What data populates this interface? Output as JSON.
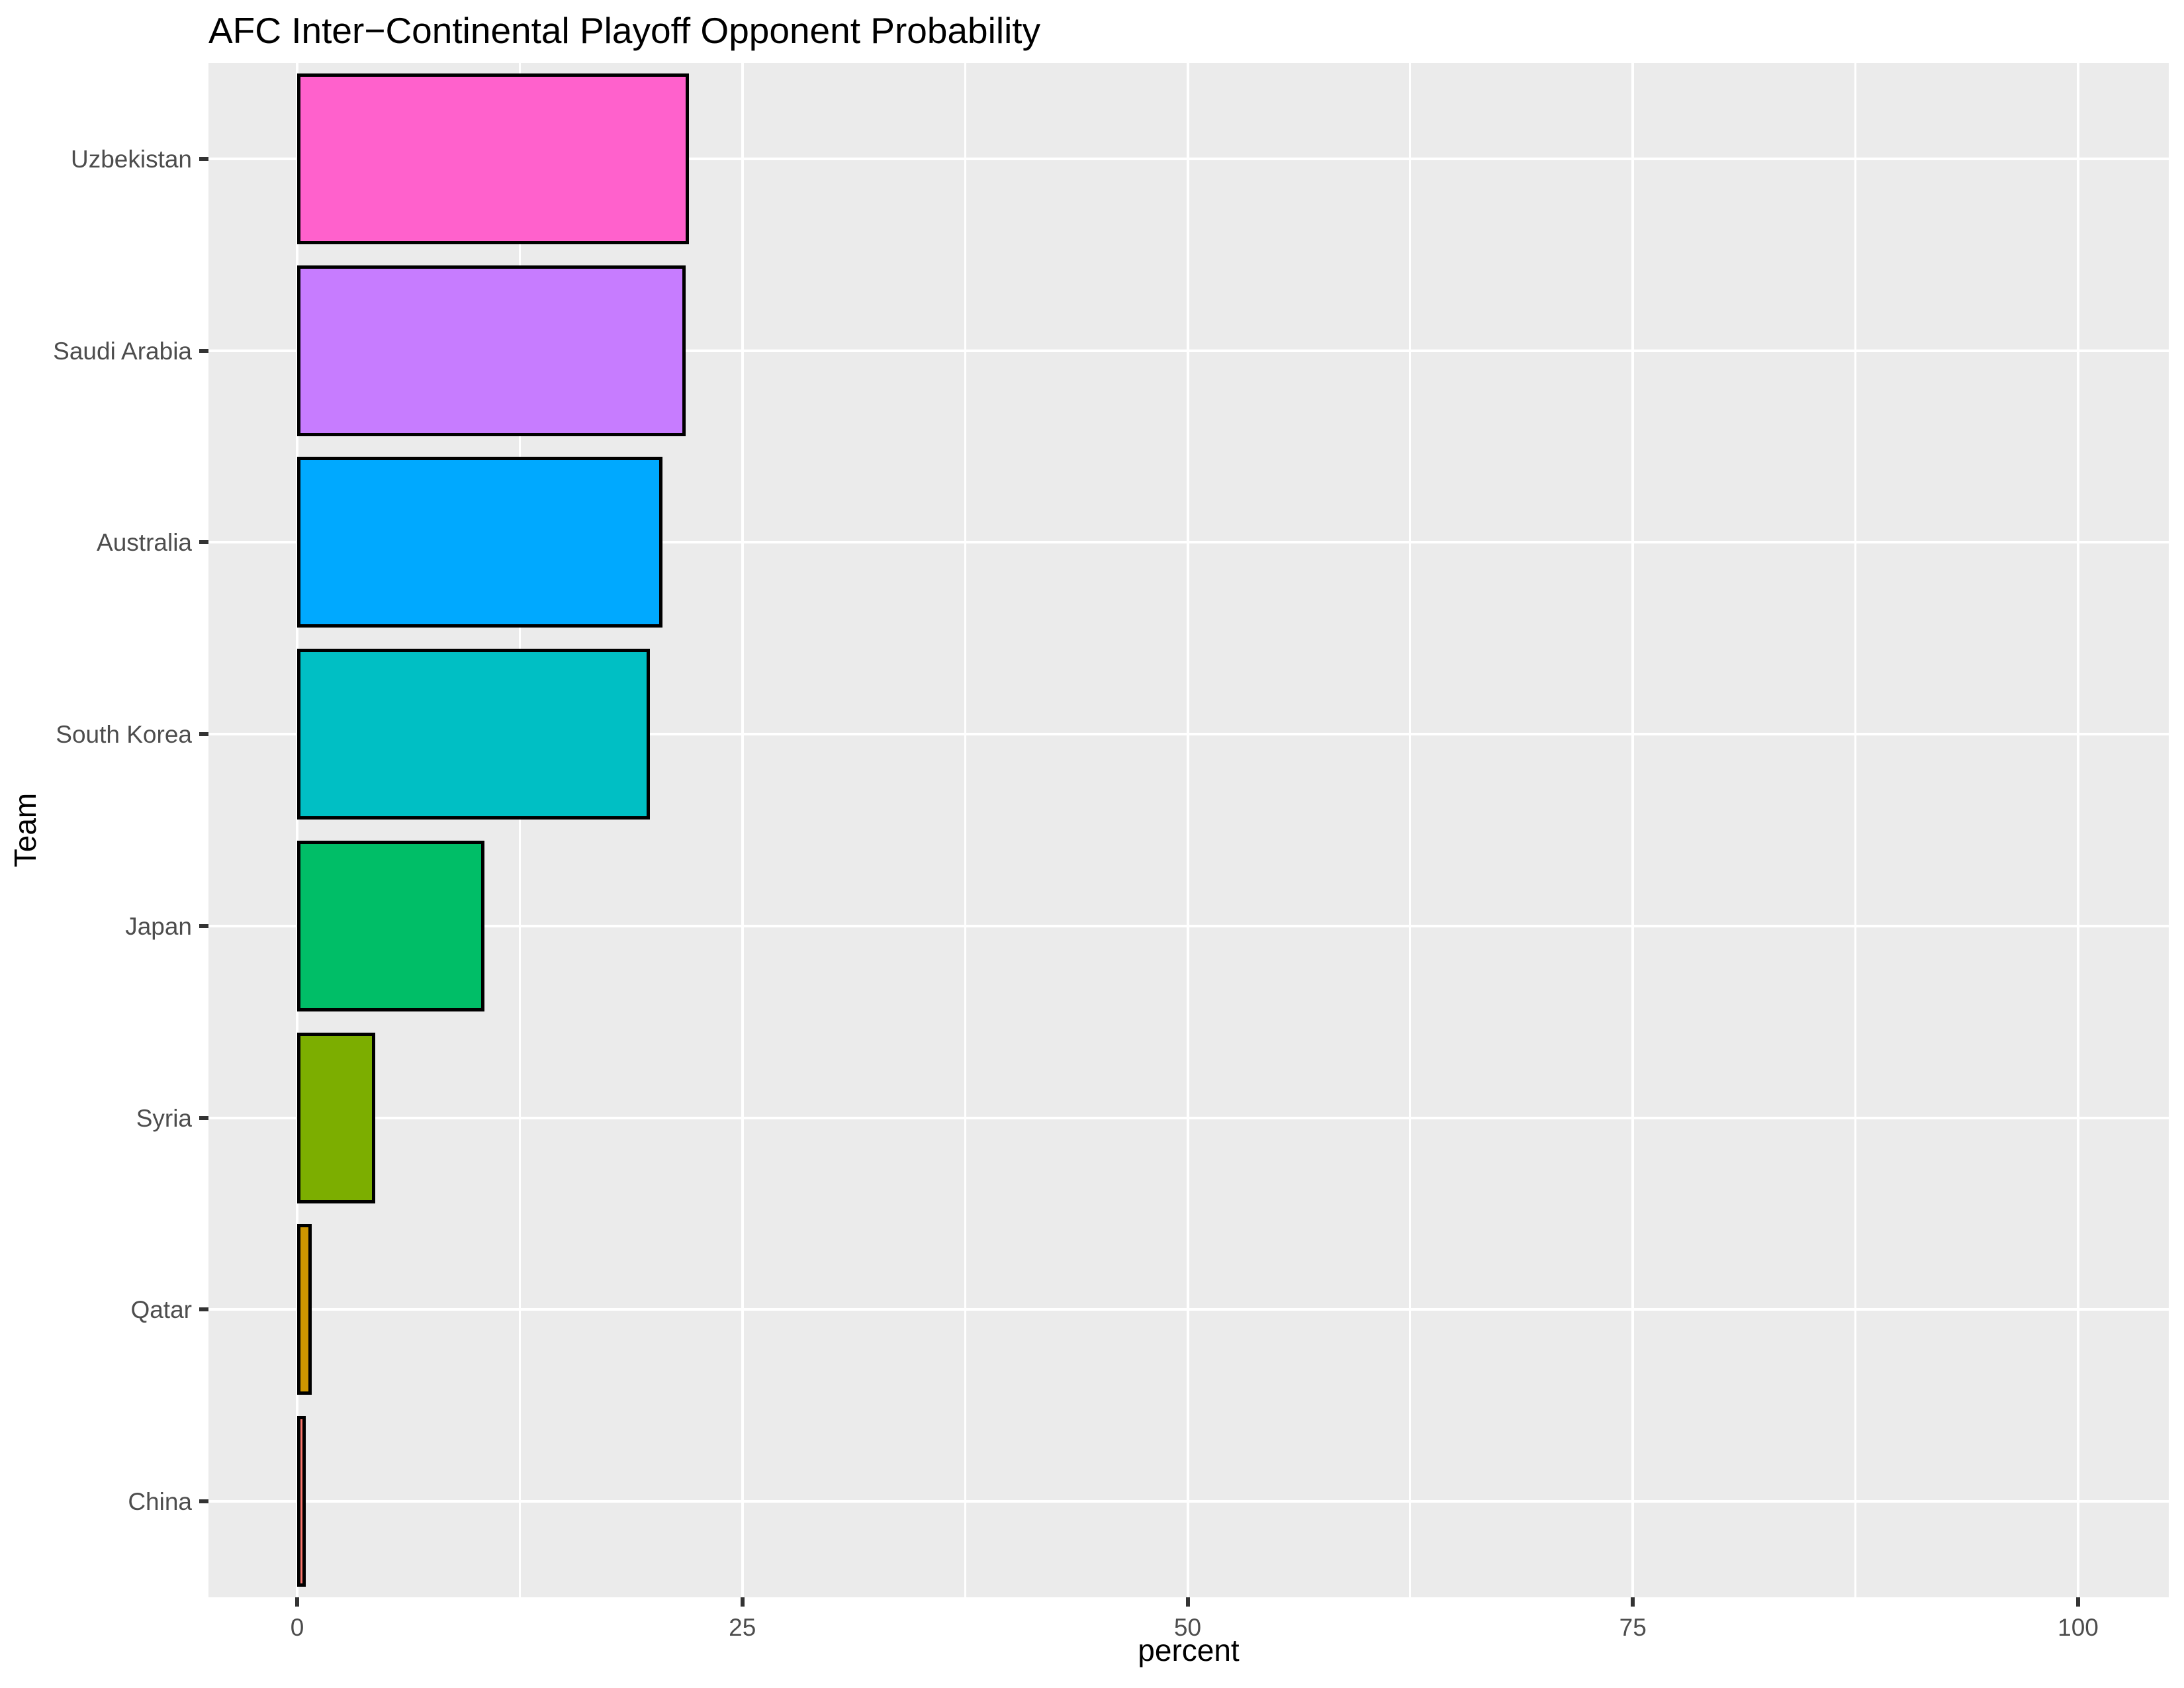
{
  "chart_data": {
    "type": "bar",
    "orientation": "horizontal",
    "title": "AFC Inter−Continental Playoff Opponent Probability",
    "xlabel": "percent",
    "ylabel": "Team",
    "categories": [
      "Uzbekistan",
      "Saudi Arabia",
      "Australia",
      "South Korea",
      "Japan",
      "Syria",
      "Qatar",
      "China"
    ],
    "values": [
      22.0,
      21.8,
      20.5,
      19.8,
      10.5,
      4.4,
      0.8,
      0.5
    ],
    "bar_colors": [
      "#FF61CC",
      "#C77CFF",
      "#00A9FF",
      "#00BFC4",
      "#00BE67",
      "#7CAE00",
      "#CD9600",
      "#F8766D"
    ],
    "xlim": [
      0,
      100
    ],
    "x_major_ticks": [
      0,
      25,
      50,
      75,
      100
    ],
    "x_tick_labels": [
      "0",
      "25",
      "50",
      "75",
      "100"
    ],
    "x_minor_ticks": [
      12.5,
      37.5,
      62.5,
      87.5
    ],
    "grid": true,
    "legend": "none",
    "colors": {
      "panel_background": "#EBEBEB",
      "gridline": "#FFFFFF",
      "bar_outline": "#000000",
      "tick_label": "#4D4D4D",
      "tick_mark": "#333333",
      "title_text": "#000000"
    }
  }
}
